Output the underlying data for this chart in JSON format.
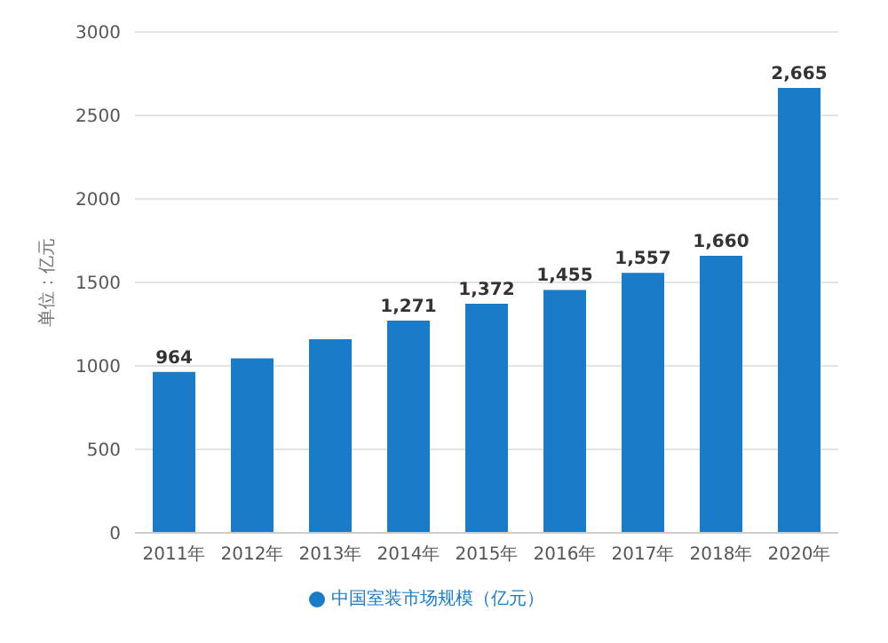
{
  "chart_data": {
    "type": "bar",
    "ylabel": "单位：亿元",
    "categories": [
      "2011年",
      "2012年",
      "2013年",
      "2014年",
      "2015年",
      "2016年",
      "2017年",
      "2018年",
      "2020年"
    ],
    "series": [
      {
        "name": "中国室装市场规模（亿元）",
        "color": "#1a7cc9",
        "values": [
          964,
          1045,
          1160,
          1271,
          1372,
          1455,
          1557,
          1660,
          2665
        ],
        "value_labels": [
          "964",
          null,
          null,
          "1,271",
          "1,372",
          "1,455",
          "1,557",
          "1,660",
          "2,665"
        ]
      }
    ],
    "ylim": [
      0,
      3000
    ],
    "yticks": [
      0,
      500,
      1000,
      1500,
      2000,
      2500,
      3000
    ],
    "grid": "y",
    "legend": "bottom"
  }
}
